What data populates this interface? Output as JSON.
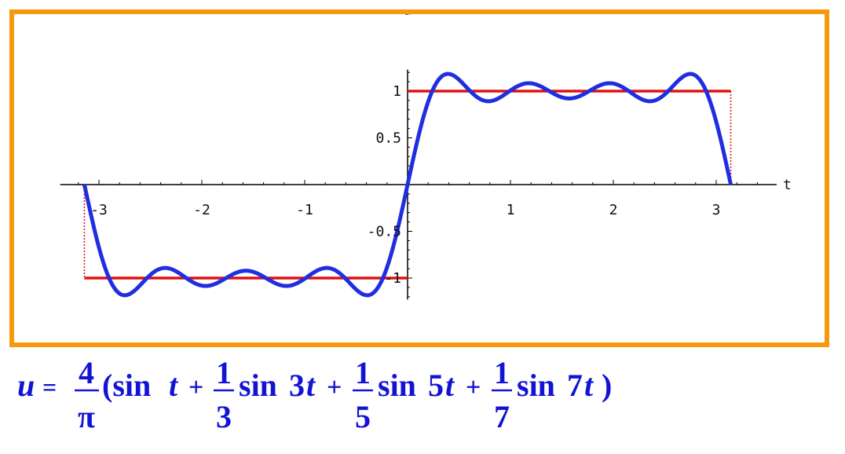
{
  "chart_data": {
    "type": "line",
    "xlabel": "t",
    "ylabel": "u",
    "xlim": [
      -3.3,
      3.45
    ],
    "ylim": [
      -1.23,
      1.23
    ],
    "x_ticks": [
      {
        "value": -3,
        "label": "-3"
      },
      {
        "value": -2,
        "label": "-2"
      },
      {
        "value": -1,
        "label": "-1"
      },
      {
        "value": 1,
        "label": "1"
      },
      {
        "value": 2,
        "label": "2"
      },
      {
        "value": 3,
        "label": "3"
      }
    ],
    "y_ticks": [
      {
        "value": -1,
        "label": "-1"
      },
      {
        "value": -0.5,
        "label": "-0.5"
      },
      {
        "value": 0.5,
        "label": "0.5"
      },
      {
        "value": 1,
        "label": "1"
      }
    ],
    "series": [
      {
        "kind": "fourier-partial-sum",
        "expression": "(4/π)(sin t + sin 3t/3 + sin 5t/5 + sin 7t/7)",
        "harmonics": [
          1,
          3,
          5,
          7
        ],
        "domain": [
          -3.14159,
          3.14159
        ],
        "color": "#1f2ee0"
      },
      {
        "kind": "square-wave",
        "segments": [
          {
            "x": [
              -3.14159,
              0
            ],
            "y": -1
          },
          {
            "x": [
              0,
              3.14159
            ],
            "y": 1
          }
        ],
        "color": "#e01010"
      }
    ],
    "grid": false
  },
  "formula": {
    "lhs": "u",
    "equals": "=",
    "coef_num": "4",
    "coef_den": "π",
    "open": "(sin",
    "t1": "t",
    "plus": "+",
    "one": "1",
    "den3": "3",
    "den5": "5",
    "den7": "7",
    "sin": "sin",
    "a3": "3",
    "a5": "5",
    "a7": "7",
    "t": "t",
    "close": ")"
  },
  "colors": {
    "frame": "#f7990c",
    "fourier": "#1f2ee0",
    "square": "#e01010",
    "formula": "#1313d6"
  }
}
